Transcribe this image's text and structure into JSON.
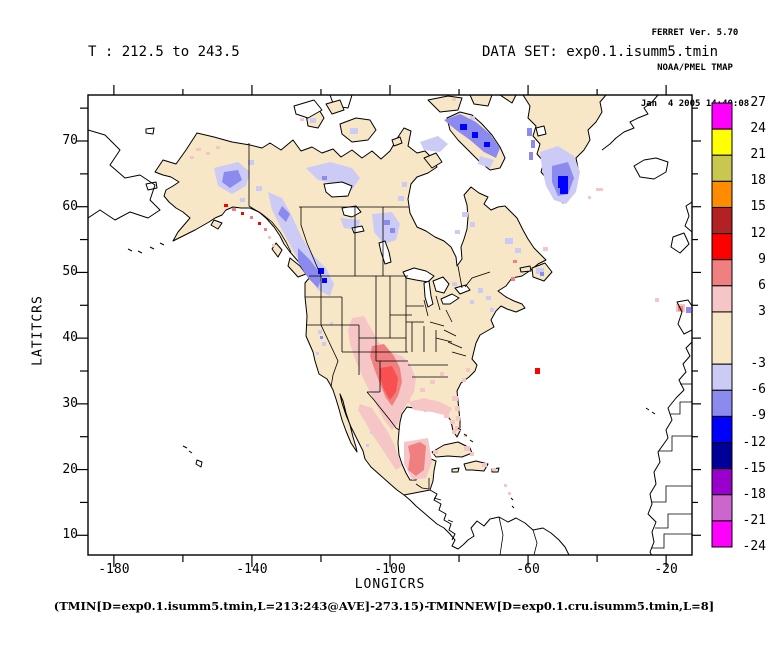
{
  "header": {
    "line1": "FERRET Ver. 5.70",
    "line2": "NOAA/PMEL TMAP",
    "line3": "Jan  4 2005 14:40:08"
  },
  "titles": {
    "left": "T : 212.5 to 243.5",
    "right": "DATA SET: exp0.1.isumm5.tmin"
  },
  "caption": "(TMIN[D=exp0.1.isumm5.tmin,L=213:243@AVE]-273.15)-TMINNEW[D=exp0.1.cru.isumm5.tmin,L=8]",
  "chart_data": {
    "type": "heatmap",
    "title": "T : 212.5 to 243.5",
    "dataset": "exp0.1.isumm5.tmin",
    "xlabel": "LONGICRS",
    "ylabel": "LATITCRS",
    "xlim": [
      -187.5,
      -12.5
    ],
    "ylim": [
      7,
      77
    ],
    "x_major_ticks": [
      -180,
      -140,
      -100,
      -60,
      -20
    ],
    "x_minor_step": 20,
    "y_major_ticks": [
      10,
      20,
      30,
      40,
      50,
      60,
      70
    ],
    "y_minor_step": 5,
    "colorbar": {
      "boundaries": [
        27,
        24,
        21,
        18,
        15,
        12,
        9,
        6,
        3,
        -3,
        -6,
        -9,
        -12,
        -15,
        -18,
        -21,
        -24
      ],
      "colors_top_to_bottom": [
        "#FF00FF",
        "#FFFF00",
        "#C8C850",
        "#FF8C00",
        "#B22222",
        "#FF0000",
        "#F08080",
        "#F6C6C6",
        "#F8E7C6",
        "#CBCBF5",
        "#8A8AEF",
        "#0000FF",
        "#000099",
        "#9900CC",
        "#CC66CC",
        "#FF00FF"
      ]
    },
    "anomaly_regions": [
      {
        "region": "interior Alaska",
        "anomaly": "-3 to -9"
      },
      {
        "region": "Yukon and British Columbia band",
        "anomaly": "-3 to -12"
      },
      {
        "region": "northwest Canada near Great Bear Lake",
        "anomaly": "-3 to -9"
      },
      {
        "region": "central Canada north of Lake Winnipeg",
        "anomaly": "-3 to -9"
      },
      {
        "region": "Baffin Island and eastern Arctic",
        "anomaly": "-3 to -12"
      },
      {
        "region": "southern Greenland",
        "anomaly": "-3 to -12"
      },
      {
        "region": "Newfoundland and eastern Quebec",
        "anomaly": "-3 to -6"
      },
      {
        "region": "Texas / Oklahoma / New Mexico",
        "anomaly": "+3 to +12"
      },
      {
        "region": "northern Mexico and Gulf Coast",
        "anomaly": "+3 to +9"
      },
      {
        "region": "Yucatan Peninsula",
        "anomaly": "+3 to +9"
      },
      {
        "region": "Florida and southeast US coast",
        "anomaly": "+3 to +6"
      },
      {
        "region": "southern Alaska coast spots",
        "anomaly": "+3 to +12"
      },
      {
        "region": "Bermuda grid point",
        "anomaly": "+9 to +12"
      },
      {
        "region": "most of colored land area",
        "anomaly": "-3 to +3"
      }
    ]
  }
}
